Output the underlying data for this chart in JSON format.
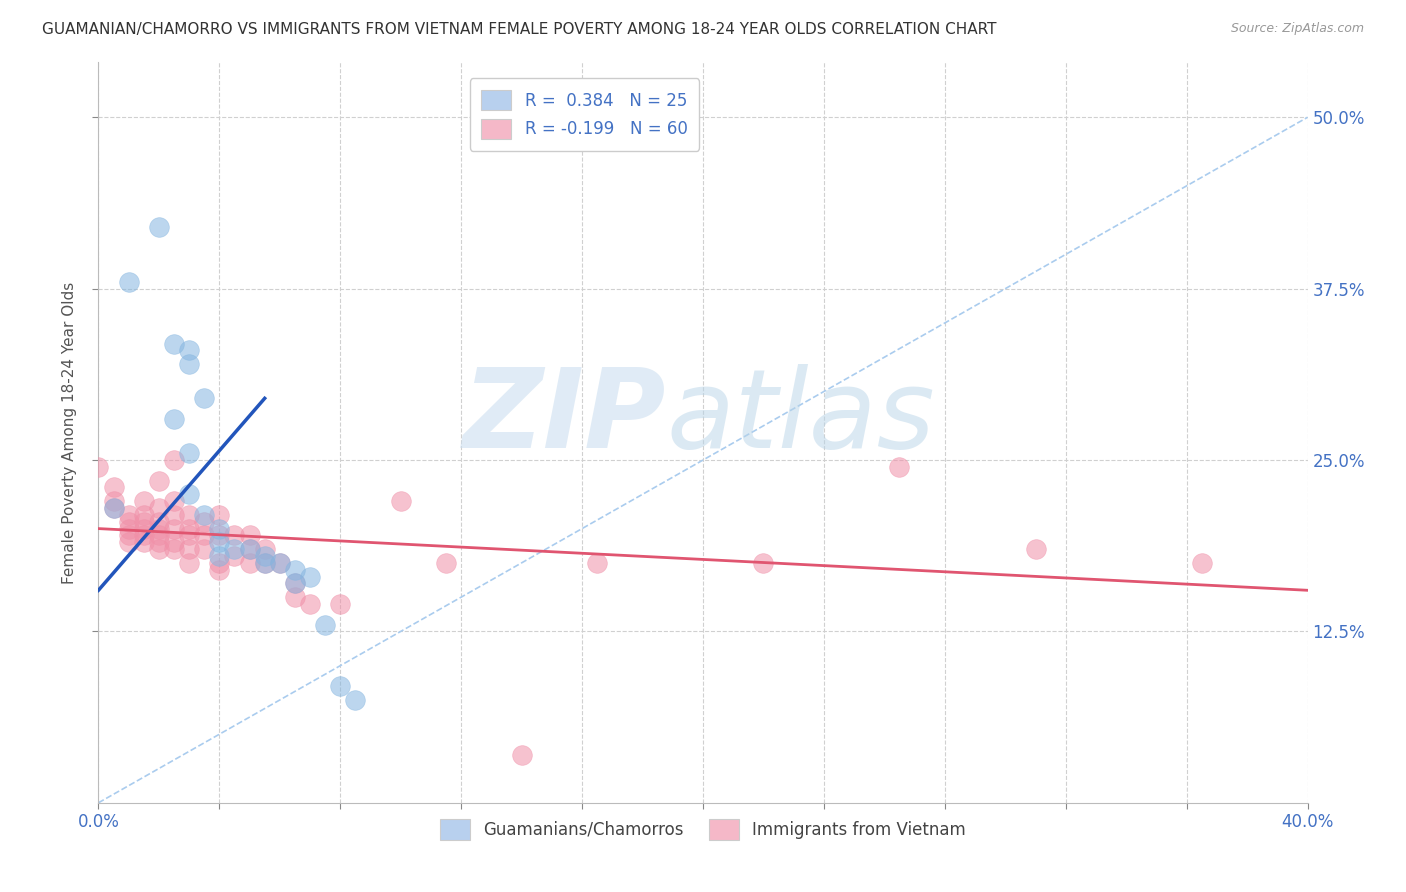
{
  "title": "GUAMANIAN/CHAMORRO VS IMMIGRANTS FROM VIETNAM FEMALE POVERTY AMONG 18-24 YEAR OLDS CORRELATION CHART",
  "source": "Source: ZipAtlas.com",
  "ylabel": "Female Poverty Among 18-24 Year Olds",
  "xlim": [
    0.0,
    0.4
  ],
  "ylim": [
    0.0,
    0.54
  ],
  "xticks": [
    0.0,
    0.04,
    0.08,
    0.12,
    0.16,
    0.2,
    0.24,
    0.28,
    0.32,
    0.36,
    0.4
  ],
  "xticklabels_show": [
    "0.0%",
    "40.0%"
  ],
  "ytick_positions": [
    0.125,
    0.25,
    0.375,
    0.5
  ],
  "ytick_labels": [
    "12.5%",
    "25.0%",
    "37.5%",
    "50.0%"
  ],
  "legend_entries": [
    {
      "label": "R =  0.384   N = 25",
      "color": "#b8d0ee"
    },
    {
      "label": "R = -0.199   N = 60",
      "color": "#f5b8c8"
    }
  ],
  "legend_labels_bottom": [
    "Guamanians/Chamorros",
    "Immigrants from Vietnam"
  ],
  "legend_colors_bottom": [
    "#b8d0ee",
    "#f5b8c8"
  ],
  "group1_color": "#85b5e0",
  "group2_color": "#f090a8",
  "group1_scatter": [
    [
      0.005,
      0.215
    ],
    [
      0.02,
      0.42
    ],
    [
      0.01,
      0.38
    ],
    [
      0.025,
      0.335
    ],
    [
      0.03,
      0.32
    ],
    [
      0.025,
      0.28
    ],
    [
      0.03,
      0.33
    ],
    [
      0.035,
      0.295
    ],
    [
      0.03,
      0.255
    ],
    [
      0.03,
      0.225
    ],
    [
      0.035,
      0.21
    ],
    [
      0.04,
      0.2
    ],
    [
      0.04,
      0.19
    ],
    [
      0.04,
      0.18
    ],
    [
      0.045,
      0.185
    ],
    [
      0.05,
      0.185
    ],
    [
      0.055,
      0.18
    ],
    [
      0.055,
      0.175
    ],
    [
      0.06,
      0.175
    ],
    [
      0.065,
      0.17
    ],
    [
      0.065,
      0.16
    ],
    [
      0.07,
      0.165
    ],
    [
      0.075,
      0.13
    ],
    [
      0.08,
      0.085
    ],
    [
      0.085,
      0.075
    ]
  ],
  "group2_scatter": [
    [
      0.0,
      0.245
    ],
    [
      0.005,
      0.23
    ],
    [
      0.005,
      0.22
    ],
    [
      0.005,
      0.215
    ],
    [
      0.01,
      0.21
    ],
    [
      0.01,
      0.205
    ],
    [
      0.01,
      0.2
    ],
    [
      0.01,
      0.195
    ],
    [
      0.01,
      0.19
    ],
    [
      0.015,
      0.22
    ],
    [
      0.015,
      0.21
    ],
    [
      0.015,
      0.205
    ],
    [
      0.015,
      0.2
    ],
    [
      0.015,
      0.195
    ],
    [
      0.015,
      0.19
    ],
    [
      0.02,
      0.235
    ],
    [
      0.02,
      0.215
    ],
    [
      0.02,
      0.205
    ],
    [
      0.02,
      0.2
    ],
    [
      0.02,
      0.195
    ],
    [
      0.02,
      0.19
    ],
    [
      0.02,
      0.185
    ],
    [
      0.025,
      0.25
    ],
    [
      0.025,
      0.22
    ],
    [
      0.025,
      0.21
    ],
    [
      0.025,
      0.2
    ],
    [
      0.025,
      0.19
    ],
    [
      0.025,
      0.185
    ],
    [
      0.03,
      0.21
    ],
    [
      0.03,
      0.2
    ],
    [
      0.03,
      0.195
    ],
    [
      0.03,
      0.185
    ],
    [
      0.03,
      0.175
    ],
    [
      0.035,
      0.205
    ],
    [
      0.035,
      0.195
    ],
    [
      0.035,
      0.185
    ],
    [
      0.04,
      0.21
    ],
    [
      0.04,
      0.195
    ],
    [
      0.04,
      0.175
    ],
    [
      0.04,
      0.17
    ],
    [
      0.045,
      0.195
    ],
    [
      0.045,
      0.18
    ],
    [
      0.05,
      0.195
    ],
    [
      0.05,
      0.185
    ],
    [
      0.05,
      0.175
    ],
    [
      0.055,
      0.185
    ],
    [
      0.055,
      0.175
    ],
    [
      0.06,
      0.175
    ],
    [
      0.065,
      0.16
    ],
    [
      0.065,
      0.15
    ],
    [
      0.07,
      0.145
    ],
    [
      0.08,
      0.145
    ],
    [
      0.1,
      0.22
    ],
    [
      0.115,
      0.175
    ],
    [
      0.14,
      0.035
    ],
    [
      0.165,
      0.175
    ],
    [
      0.22,
      0.175
    ],
    [
      0.265,
      0.245
    ],
    [
      0.31,
      0.185
    ],
    [
      0.365,
      0.175
    ]
  ],
  "group1_trendline": {
    "x": [
      0.0,
      0.055
    ],
    "y": [
      0.155,
      0.295
    ]
  },
  "group2_trendline": {
    "x": [
      0.0,
      0.4
    ],
    "y": [
      0.2,
      0.155
    ]
  },
  "diagonal_line": {
    "x": [
      0.0,
      0.4
    ],
    "y": [
      0.0,
      0.5
    ]
  },
  "background_color": "#ffffff",
  "grid_color": "#d0d0d0",
  "title_color": "#333333",
  "right_tick_color": "#4472c4"
}
